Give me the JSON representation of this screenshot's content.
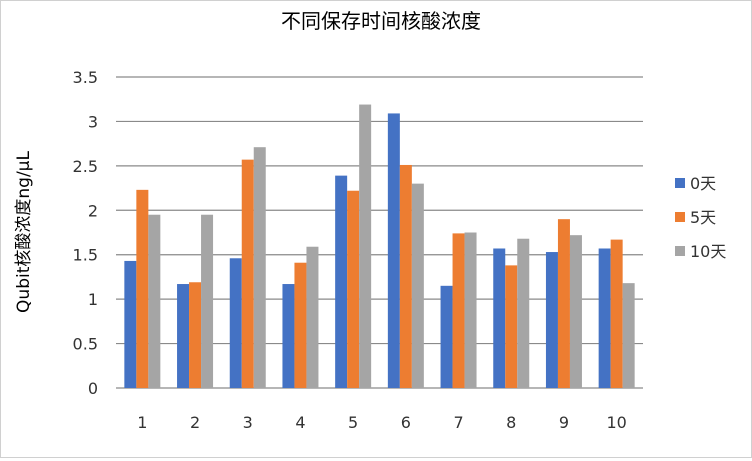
{
  "chart_data": {
    "type": "bar",
    "title": "不同保存时间核酸浓度",
    "xlabel": "",
    "ylabel": "Qubit核酸浓度ng/μL",
    "ylim": [
      0,
      3.5
    ],
    "yticks": [
      "0",
      "0.5",
      "1",
      "1.5",
      "2",
      "2.5",
      "3",
      "3.5"
    ],
    "grid": true,
    "legend_position": "right",
    "categories": [
      "1",
      "2",
      "3",
      "4",
      "5",
      "6",
      "7",
      "8",
      "9",
      "10"
    ],
    "series": [
      {
        "name": "0天",
        "color": "#4472C4",
        "values": [
          1.43,
          1.17,
          1.46,
          1.17,
          2.39,
          3.09,
          1.15,
          1.57,
          1.53,
          1.57
        ]
      },
      {
        "name": "5天",
        "color": "#ED7D31",
        "values": [
          2.23,
          1.19,
          2.57,
          1.41,
          2.22,
          2.51,
          1.74,
          1.38,
          1.9,
          1.67
        ]
      },
      {
        "name": "10天",
        "color": "#A5A5A5",
        "values": [
          1.95,
          1.95,
          2.71,
          1.59,
          3.19,
          2.3,
          1.75,
          1.68,
          1.72,
          1.18
        ]
      }
    ]
  }
}
